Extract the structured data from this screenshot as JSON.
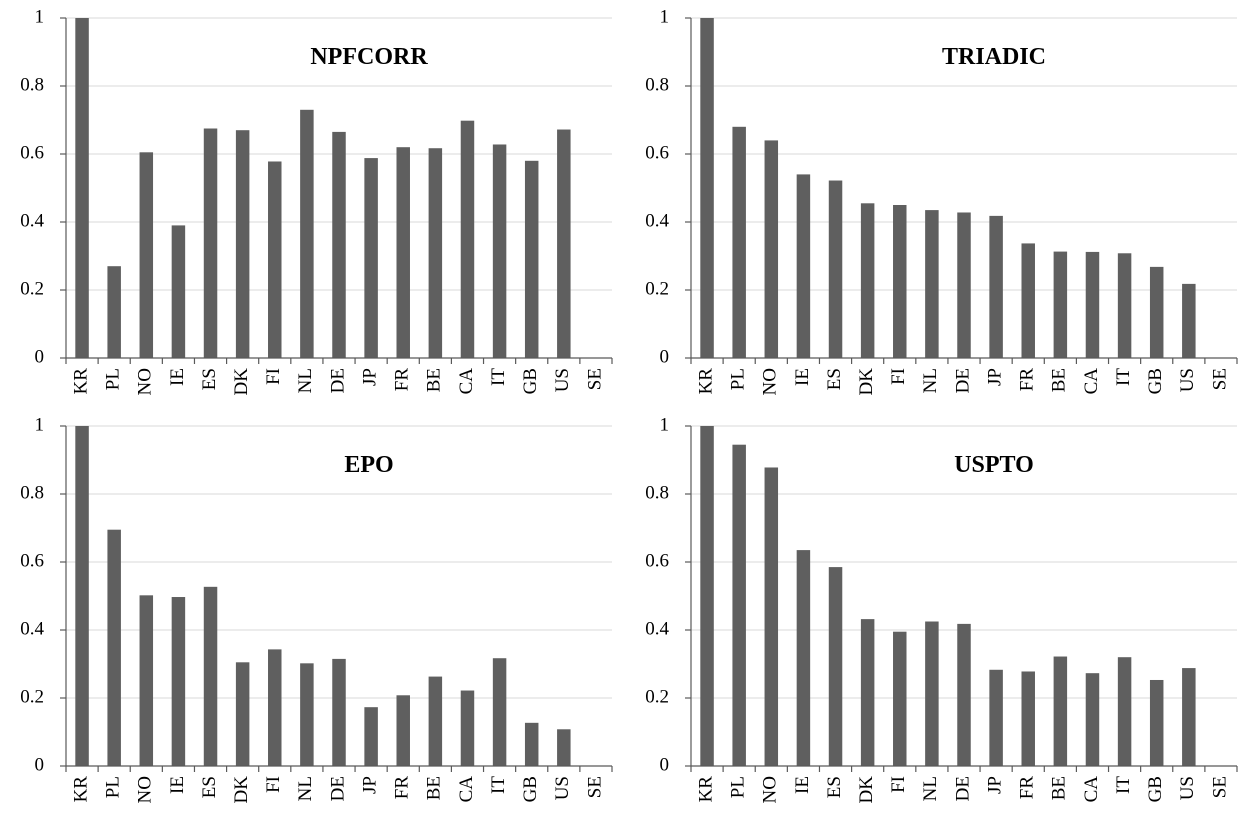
{
  "chart_data": [
    {
      "type": "bar",
      "title": "NPFCORR",
      "categories": [
        "KR",
        "PL",
        "NO",
        "IE",
        "ES",
        "DK",
        "FI",
        "NL",
        "DE",
        "JP",
        "FR",
        "BE",
        "CA",
        "IT",
        "GB",
        "US",
        "SE"
      ],
      "values": [
        1.0,
        0.27,
        0.605,
        0.39,
        0.675,
        0.67,
        0.578,
        0.73,
        0.665,
        0.588,
        0.62,
        0.617,
        0.698,
        0.628,
        0.58,
        0.672,
        0
      ],
      "ylim": [
        0,
        1
      ],
      "yticks": [
        "0",
        "0.2",
        "0.4",
        "0.6",
        "0.8",
        "1"
      ],
      "grid": true
    },
    {
      "type": "bar",
      "title": "TRIADIC",
      "categories": [
        "KR",
        "PL",
        "NO",
        "IE",
        "ES",
        "DK",
        "FI",
        "NL",
        "DE",
        "JP",
        "FR",
        "BE",
        "CA",
        "IT",
        "GB",
        "US",
        "SE"
      ],
      "values": [
        1.0,
        0.68,
        0.64,
        0.54,
        0.522,
        0.455,
        0.45,
        0.435,
        0.428,
        0.418,
        0.337,
        0.313,
        0.312,
        0.308,
        0.268,
        0.218,
        0
      ],
      "ylim": [
        0,
        1
      ],
      "yticks": [
        "0",
        "0.2",
        "0.4",
        "0.6",
        "0.8",
        "1"
      ],
      "grid": true
    },
    {
      "type": "bar",
      "title": "EPO",
      "categories": [
        "KR",
        "PL",
        "NO",
        "IE",
        "ES",
        "DK",
        "FI",
        "NL",
        "DE",
        "JP",
        "FR",
        "BE",
        "CA",
        "IT",
        "GB",
        "US",
        "SE"
      ],
      "values": [
        1.0,
        0.695,
        0.502,
        0.497,
        0.527,
        0.305,
        0.343,
        0.302,
        0.315,
        0.173,
        0.208,
        0.263,
        0.222,
        0.317,
        0.127,
        0.108,
        0
      ],
      "ylim": [
        0,
        1
      ],
      "yticks": [
        "0",
        "0.2",
        "0.4",
        "0.6",
        "0.8",
        "1"
      ],
      "grid": true
    },
    {
      "type": "bar",
      "title": "USPTO",
      "categories": [
        "KR",
        "PL",
        "NO",
        "IE",
        "ES",
        "DK",
        "FI",
        "NL",
        "DE",
        "JP",
        "FR",
        "BE",
        "CA",
        "IT",
        "GB",
        "US",
        "SE"
      ],
      "values": [
        1.0,
        0.945,
        0.878,
        0.635,
        0.585,
        0.432,
        0.395,
        0.425,
        0.418,
        0.283,
        0.278,
        0.322,
        0.273,
        0.32,
        0.253,
        0.288,
        0
      ],
      "ylim": [
        0,
        1
      ],
      "yticks": [
        "0",
        "0.2",
        "0.4",
        "0.6",
        "0.8",
        "1"
      ],
      "grid": true
    }
  ]
}
